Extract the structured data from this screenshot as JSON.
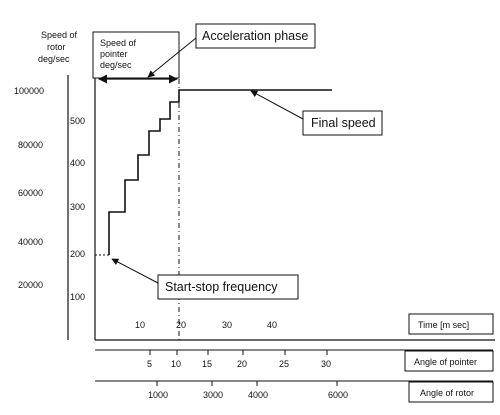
{
  "labels": {
    "rotor_axis_title": [
      "Speed of",
      "rotor",
      "deg/sec"
    ],
    "pointer_axis_title": [
      "Speed of",
      "pointer",
      "deg/sec"
    ],
    "acceleration_phase": "Acceleration phase",
    "final_speed": "Final speed",
    "start_stop_frequency": "Start-stop frequency",
    "time_axis_title": "Time [m sec]",
    "angle_pointer_title": "Angle of pointer",
    "angle_rotor_title": "Angle of rotor"
  },
  "rotor_ticks": [
    "100000",
    "80000",
    "60000",
    "40000",
    "20000"
  ],
  "pointer_ticks": [
    "500",
    "400",
    "300",
    "200",
    "100"
  ],
  "time_ticks": [
    "10",
    "20",
    "30",
    "40"
  ],
  "pointer_angle_ticks": [
    "5",
    "10",
    "15",
    "20",
    "25",
    "30"
  ],
  "rotor_angle_ticks": [
    "1000",
    "3000",
    "4000",
    "6000"
  ],
  "speed_profile": {
    "x_unit": "msec",
    "y_unit": "deg/sec (pointer)",
    "steps": [
      {
        "t_start": 0,
        "t_end": 1,
        "speed": 190
      },
      {
        "t_start": 1,
        "t_end": 4,
        "speed": 290
      },
      {
        "t_start": 4,
        "t_end": 8,
        "speed": 360
      },
      {
        "t_start": 8,
        "t_end": 11,
        "speed": 420
      },
      {
        "t_start": 11,
        "t_end": 14,
        "speed": 470
      },
      {
        "t_start": 14,
        "t_end": 17,
        "speed": 500
      },
      {
        "t_start": 17,
        "t_end": 19.5,
        "speed": 540
      },
      {
        "t_start": 19.5,
        "t_end": 55,
        "speed": 570
      }
    ]
  }
}
